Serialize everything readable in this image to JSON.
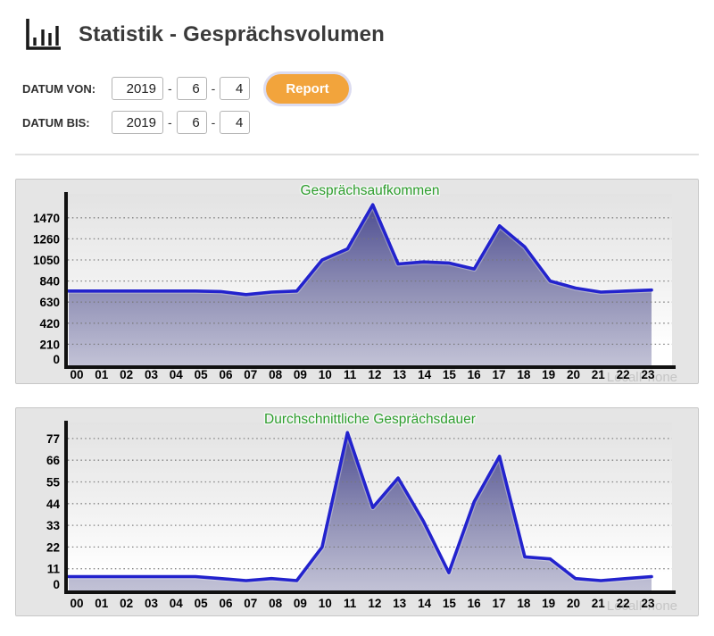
{
  "header": {
    "title": "Statistik - Gesprächsvolumen",
    "icon": "bar-chart-icon"
  },
  "filters": {
    "rows": [
      {
        "label": "DATUM VON:",
        "year": "2019",
        "sep": "-",
        "month": "6",
        "day": "4"
      },
      {
        "label": "DATUM BIS:",
        "year": "2019",
        "sep": "-",
        "month": "6",
        "day": "4"
      }
    ],
    "report_button": "Report"
  },
  "watermark": "LocalPhone",
  "colors": {
    "accent_green": "#2e9e2e",
    "line_blue": "#2323cd",
    "area_top": "#45458d",
    "area_mid": "#8e8eb4",
    "area_bottom": "#c2c2d6",
    "plot_bg_top": "#e3e3e3",
    "plot_bg_bottom": "#ffffff",
    "grid": "#777777",
    "axis": "#111111",
    "tick_text": "#000000",
    "panel_bg": "#e5e5e5",
    "button_orange": "#f2a43c",
    "watermark_gray": "#c5c5c5"
  },
  "chart_data": [
    {
      "type": "area",
      "title": "Gesprächsaufkommen",
      "categories": [
        "00",
        "01",
        "02",
        "03",
        "04",
        "05",
        "06",
        "07",
        "08",
        "09",
        "10",
        "11",
        "12",
        "13",
        "14",
        "15",
        "16",
        "17",
        "18",
        "19",
        "20",
        "21",
        "22",
        "23"
      ],
      "values": [
        740,
        740,
        740,
        740,
        740,
        740,
        735,
        705,
        730,
        740,
        1050,
        1160,
        1600,
        1010,
        1030,
        1020,
        960,
        1390,
        1180,
        840,
        770,
        730,
        740,
        750
      ],
      "xlabel": "",
      "ylabel": "",
      "yticks": [
        0,
        210,
        420,
        630,
        840,
        1050,
        1260,
        1470
      ],
      "ylim": [
        0,
        1680
      ],
      "grid": "dotted-horizontal",
      "legend": "none"
    },
    {
      "type": "area",
      "title": "Durchschnittliche Gesprächsdauer",
      "categories": [
        "00",
        "01",
        "02",
        "03",
        "04",
        "05",
        "06",
        "07",
        "08",
        "09",
        "10",
        "11",
        "12",
        "13",
        "14",
        "15",
        "16",
        "17",
        "18",
        "19",
        "20",
        "21",
        "22",
        "23"
      ],
      "values": [
        7,
        7,
        7,
        7,
        7,
        7,
        6,
        5,
        6,
        5,
        22,
        80,
        42,
        57,
        35,
        9,
        45,
        68,
        17,
        16,
        6,
        5,
        6,
        7
      ],
      "xlabel": "",
      "ylabel": "",
      "yticks": [
        0,
        11,
        22,
        33,
        44,
        55,
        66,
        77
      ],
      "ylim": [
        0,
        84
      ],
      "grid": "dotted-horizontal",
      "legend": "none"
    }
  ]
}
